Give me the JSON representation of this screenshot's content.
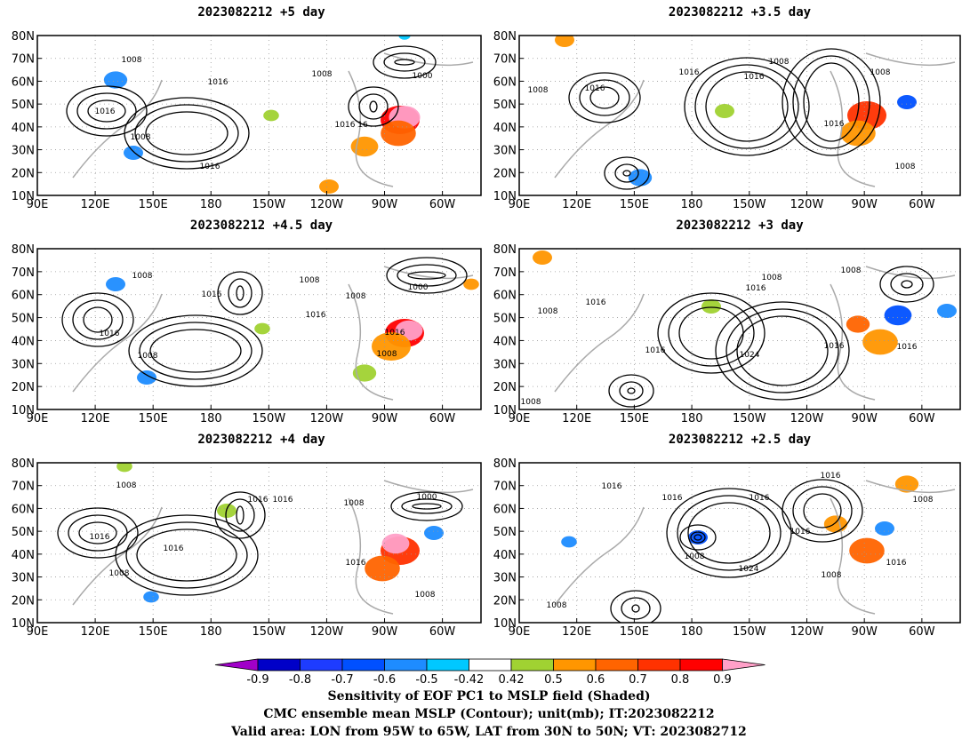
{
  "panels": [
    {
      "title": "2023082212  +5 day"
    },
    {
      "title": "2023082212  +3.5 day"
    },
    {
      "title": "2023082212  +4.5 day"
    },
    {
      "title": "2023082212  +3 day"
    },
    {
      "title": "2023082212  +4 day"
    },
    {
      "title": "2023082212  +2.5 day"
    }
  ],
  "map_axes": {
    "lat_ticks": [
      "80N",
      "70N",
      "60N",
      "50N",
      "40N",
      "30N",
      "20N",
      "10N"
    ],
    "lat_values": [
      80,
      70,
      60,
      50,
      40,
      30,
      20,
      10
    ],
    "lon_ticks": [
      "90E",
      "120E",
      "150E",
      "180",
      "150W",
      "120W",
      "90W",
      "60W"
    ],
    "lon_values": [
      90,
      120,
      150,
      180,
      210,
      240,
      270,
      300
    ],
    "lon_range": [
      90,
      320
    ],
    "lat_range": [
      10,
      80
    ]
  },
  "colorbar": {
    "labels": [
      "-0.9",
      "-0.8",
      "-0.7",
      "-0.6",
      "-0.5",
      "-0.42",
      "0.42",
      "0.5",
      "0.6",
      "0.7",
      "0.8",
      "0.9"
    ],
    "colors": [
      "#a000c8",
      "#0000c8",
      "#1e3cff",
      "#0050ff",
      "#1e8cff",
      "#00c8ff",
      "#ffffff",
      "#a0d232",
      "#ff9600",
      "#ff6400",
      "#ff3200",
      "#ff0000",
      "#ffa0c8"
    ]
  },
  "contour_labels": [
    [
      "1008",
      "1016",
      "1008",
      "1016",
      "1000",
      "1016",
      "16",
      "1008",
      "1016"
    ],
    [
      "1008",
      "1016",
      "1016",
      "1008",
      "1016",
      "1008",
      "1016",
      "1008"
    ],
    [
      "1008",
      "1016",
      "1008",
      "1016",
      "1008",
      "1000",
      "1016",
      "1008",
      "1016",
      "1008"
    ],
    [
      "1008",
      "1016",
      "1008",
      "1016",
      "1016",
      "1024",
      "1008",
      "1016",
      "1016",
      "1008"
    ],
    [
      "1008",
      "1016",
      "1016",
      "1008",
      "1016",
      "1016",
      "1008",
      "1000",
      "1016",
      "1008"
    ],
    [
      "1016",
      "1016",
      "1016",
      "1016",
      "1008",
      "1024",
      "1008",
      "1016",
      "1016",
      "1008",
      "1008"
    ]
  ],
  "caption": {
    "line1": "Sensitivity of EOF PC1 to MSLP field (Shaded)",
    "line2": "CMC ensemble mean MSLP (Contour); unit(mb); IT:2023082212",
    "line3": "Valid area: LON from 95W to 65W, LAT from 30N to 50N; VT: 2023082712"
  }
}
